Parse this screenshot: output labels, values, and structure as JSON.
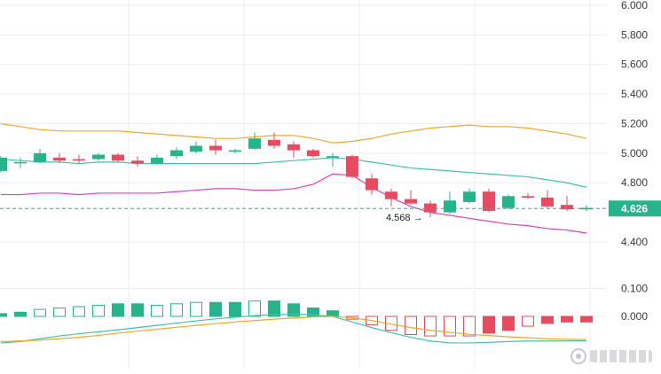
{
  "chart_data": [
    {
      "type": "candlestick",
      "y_ticks": [
        "6.000",
        "5.800",
        "5.600",
        "5.400",
        "5.200",
        "5.000",
        "4.800",
        "4.400"
      ],
      "ylim": [
        4.31,
        6.0
      ],
      "last_price": {
        "label": "4.626",
        "value": 4.626
      },
      "low_marker": {
        "label": "4.568",
        "value": 4.568,
        "index": 22
      },
      "candles": [
        {
          "o": 4.88,
          "c": 4.97,
          "h": 4.98,
          "l": 4.87
        },
        {
          "o": 4.94,
          "c": 4.94,
          "h": 4.97,
          "l": 4.9
        },
        {
          "o": 4.94,
          "c": 5.0,
          "h": 5.03,
          "l": 4.93
        },
        {
          "o": 4.97,
          "c": 4.95,
          "h": 5.0,
          "l": 4.93
        },
        {
          "o": 4.96,
          "c": 4.95,
          "h": 4.99,
          "l": 4.93
        },
        {
          "o": 4.96,
          "c": 4.99,
          "h": 5.0,
          "l": 4.95
        },
        {
          "o": 4.99,
          "c": 4.95,
          "h": 5.0,
          "l": 4.94
        },
        {
          "o": 4.95,
          "c": 4.93,
          "h": 4.98,
          "l": 4.91
        },
        {
          "o": 4.93,
          "c": 4.97,
          "h": 4.99,
          "l": 4.92
        },
        {
          "o": 4.98,
          "c": 5.02,
          "h": 5.04,
          "l": 4.96
        },
        {
          "o": 5.01,
          "c": 5.05,
          "h": 5.08,
          "l": 5.0
        },
        {
          "o": 5.05,
          "c": 5.02,
          "h": 5.09,
          "l": 4.99
        },
        {
          "o": 5.01,
          "c": 5.02,
          "h": 5.03,
          "l": 5.0
        },
        {
          "o": 5.03,
          "c": 5.1,
          "h": 5.14,
          "l": 5.02
        },
        {
          "o": 5.09,
          "c": 5.05,
          "h": 5.14,
          "l": 5.03
        },
        {
          "o": 5.06,
          "c": 5.02,
          "h": 5.08,
          "l": 4.97
        },
        {
          "o": 5.02,
          "c": 4.98,
          "h": 5.03,
          "l": 4.97
        },
        {
          "o": 4.97,
          "c": 4.98,
          "h": 5.0,
          "l": 4.91
        },
        {
          "o": 4.98,
          "c": 4.84,
          "h": 4.99,
          "l": 4.83
        },
        {
          "o": 4.83,
          "c": 4.75,
          "h": 4.86,
          "l": 4.72
        },
        {
          "o": 4.74,
          "c": 4.69,
          "h": 4.76,
          "l": 4.64
        },
        {
          "o": 4.69,
          "c": 4.66,
          "h": 4.75,
          "l": 4.65
        },
        {
          "o": 4.66,
          "c": 4.6,
          "h": 4.68,
          "l": 4.568
        },
        {
          "o": 4.6,
          "c": 4.68,
          "h": 4.74,
          "l": 4.59
        },
        {
          "o": 4.67,
          "c": 4.74,
          "h": 4.76,
          "l": 4.66
        },
        {
          "o": 4.74,
          "c": 4.61,
          "h": 4.76,
          "l": 4.6
        },
        {
          "o": 4.63,
          "c": 4.71,
          "h": 4.72,
          "l": 4.62
        },
        {
          "o": 4.71,
          "c": 4.7,
          "h": 4.73,
          "l": 4.69
        },
        {
          "o": 4.7,
          "c": 4.64,
          "h": 4.75,
          "l": 4.63
        },
        {
          "o": 4.65,
          "c": 4.62,
          "h": 4.71,
          "l": 4.61
        },
        {
          "o": 4.62,
          "c": 4.63,
          "h": 4.65,
          "l": 4.61
        }
      ],
      "bands": {
        "upper": [
          5.2,
          5.18,
          5.16,
          5.15,
          5.15,
          5.15,
          5.15,
          5.14,
          5.13,
          5.12,
          5.11,
          5.1,
          5.1,
          5.11,
          5.12,
          5.12,
          5.1,
          5.07,
          5.08,
          5.1,
          5.13,
          5.15,
          5.17,
          5.18,
          5.19,
          5.18,
          5.18,
          5.17,
          5.15,
          5.13,
          5.1
        ],
        "middle": [
          4.96,
          4.95,
          4.94,
          4.94,
          4.93,
          4.94,
          4.94,
          4.93,
          4.93,
          4.93,
          4.93,
          4.93,
          4.93,
          4.93,
          4.94,
          4.95,
          4.96,
          4.97,
          4.96,
          4.94,
          4.92,
          4.9,
          4.89,
          4.88,
          4.87,
          4.86,
          4.85,
          4.84,
          4.82,
          4.8,
          4.77
        ],
        "lower": [
          4.72,
          4.72,
          4.73,
          4.73,
          4.72,
          4.73,
          4.73,
          4.73,
          4.73,
          4.74,
          4.75,
          4.76,
          4.76,
          4.75,
          4.75,
          4.76,
          4.79,
          4.86,
          4.85,
          4.77,
          4.7,
          4.64,
          4.6,
          4.58,
          4.56,
          4.54,
          4.52,
          4.51,
          4.49,
          4.48,
          4.46
        ]
      }
    },
    {
      "type": "histogram",
      "y_ticks": [
        "0.100",
        "0.000"
      ],
      "ylim": [
        -0.13,
        0.13
      ],
      "histogram": [
        0.01,
        0.015,
        0.025,
        0.03,
        0.035,
        0.04,
        0.045,
        0.045,
        0.04,
        0.045,
        0.05,
        0.05,
        0.05,
        0.055,
        0.055,
        0.045,
        0.03,
        0.02,
        -0.01,
        -0.03,
        -0.05,
        -0.065,
        -0.07,
        -0.07,
        -0.07,
        -0.06,
        -0.05,
        -0.035,
        -0.025,
        -0.02,
        -0.02
      ],
      "histogram_filled": [
        true,
        true,
        false,
        false,
        false,
        false,
        true,
        true,
        false,
        false,
        false,
        true,
        true,
        false,
        true,
        true,
        true,
        true,
        false,
        false,
        false,
        false,
        false,
        false,
        false,
        true,
        true,
        false,
        true,
        true,
        true
      ],
      "line_a": [
        -0.095,
        -0.09,
        -0.08,
        -0.07,
        -0.062,
        -0.055,
        -0.048,
        -0.04,
        -0.032,
        -0.024,
        -0.016,
        -0.009,
        -0.003,
        0.003,
        0.006,
        0.008,
        0.006,
        0.0,
        -0.02,
        -0.04,
        -0.058,
        -0.075,
        -0.088,
        -0.095,
        -0.095,
        -0.093,
        -0.09,
        -0.088,
        -0.088,
        -0.088,
        -0.087
      ],
      "line_b": [
        -0.09,
        -0.088,
        -0.085,
        -0.08,
        -0.075,
        -0.068,
        -0.06,
        -0.053,
        -0.046,
        -0.039,
        -0.032,
        -0.026,
        -0.02,
        -0.015,
        -0.01,
        -0.006,
        -0.002,
        0.0,
        -0.005,
        -0.015,
        -0.028,
        -0.04,
        -0.05,
        -0.057,
        -0.064,
        -0.069,
        -0.073,
        -0.077,
        -0.08,
        -0.082,
        -0.083
      ]
    }
  ],
  "colors": {
    "up": "#26b48c",
    "down": "#e84a5f",
    "upper_band": "#f5a623",
    "middle_band": "#3ec5a8",
    "lower_band": "#e33fb8",
    "last_price_bg": "#26b48c",
    "grid": "#eeeeee",
    "macd_line_a": "#3ec5a8",
    "macd_line_b": "#f5a623"
  }
}
